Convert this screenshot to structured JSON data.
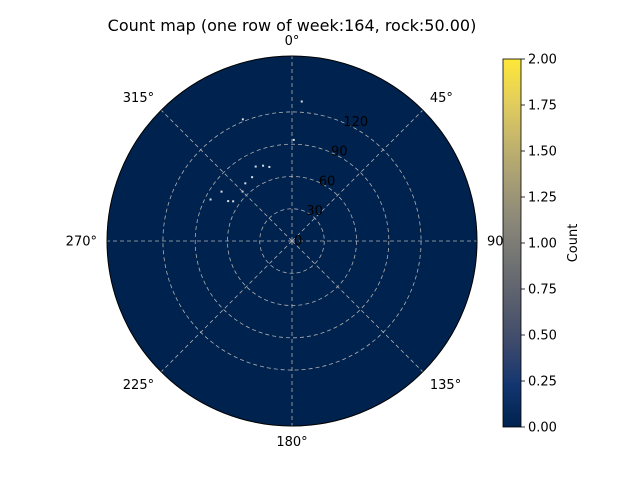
{
  "chart_data": {
    "type": "heatmap",
    "projection": "polar",
    "title": "Count map (one row of week:164, rock:50.00)",
    "theta_zero": "N",
    "theta_direction": "clockwise",
    "theta_tick_labels": [
      "0°",
      "45°",
      "90°",
      "135°",
      "180°",
      "225°",
      "270°",
      "315°"
    ],
    "theta_ticks_deg": [
      0,
      45,
      90,
      135,
      180,
      225,
      270,
      315
    ],
    "r_ticks": [
      0,
      30,
      60,
      90,
      120
    ],
    "r_tick_labels": [
      "0",
      "30",
      "60",
      "90",
      "120"
    ],
    "rlim": [
      0,
      172
    ],
    "grid": true,
    "colormap": "cividis",
    "colormap_stops": [
      "#00224e",
      "#123570",
      "#3b496c",
      "#575d6d",
      "#707173",
      "#8a8779",
      "#a69d75",
      "#c4b56c",
      "#e4cf5b",
      "#fee838"
    ],
    "background_color": "#00224e",
    "colorbar": {
      "label": "Count",
      "range": [
        0,
        2
      ],
      "ticks": [
        0,
        0.25,
        0.5,
        0.75,
        1.0,
        1.25,
        1.5,
        1.75,
        2.0
      ],
      "tick_labels": [
        "0.00",
        "0.25",
        "0.50",
        "0.75",
        "1.00",
        "1.25",
        "1.50",
        "1.75",
        "2.00"
      ],
      "placement": "right"
    },
    "points": [
      {
        "theta": 4,
        "r": 130,
        "count": 1
      },
      {
        "theta": 338,
        "r": 122,
        "count": 1
      },
      {
        "theta": 1,
        "r": 94,
        "count": 1
      },
      {
        "theta": 343,
        "r": 72,
        "count": 1
      },
      {
        "theta": 339,
        "r": 75,
        "count": 1
      },
      {
        "theta": 334,
        "r": 77,
        "count": 1
      },
      {
        "theta": 328,
        "r": 70,
        "count": 1
      },
      {
        "theta": 321,
        "r": 69,
        "count": 1
      },
      {
        "theta": 315,
        "r": 65,
        "count": 1
      },
      {
        "theta": 305,
        "r": 80,
        "count": 1
      },
      {
        "theta": 302,
        "r": 70,
        "count": 1
      },
      {
        "theta": 297,
        "r": 85,
        "count": 1
      },
      {
        "theta": 304,
        "r": 66,
        "count": 1
      }
    ]
  }
}
